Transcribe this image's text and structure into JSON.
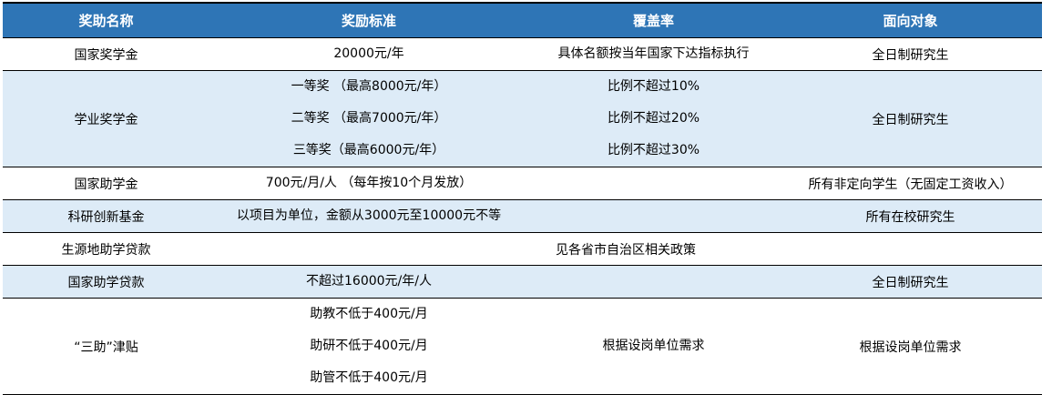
{
  "colors": {
    "header_bg": "#2E75B6",
    "alt_row_bg": "#DDEBF7"
  },
  "table": {
    "headers": [
      "奖助名称",
      "奖励标准",
      "覆盖率",
      "面向对象"
    ],
    "rows": [
      {
        "name": "国家奖学金",
        "standard": [
          "20000元/年"
        ],
        "coverage": [
          "具体名额按当年国家下达指标执行"
        ],
        "target": "全日制研究生",
        "alt": false
      },
      {
        "name": "学业奖学金",
        "standard": [
          "一等奖 （最高8000元/年）",
          "二等奖 （最高7000元/年）",
          "三等奖（最高6000元/年）"
        ],
        "coverage": [
          "比例不超过10%",
          "比例不超过20%",
          "比例不超过30%"
        ],
        "target": "全日制研究生",
        "alt": true
      },
      {
        "name": "国家助学金",
        "standard": [
          "700元/月/人 （每年按10个月发放）"
        ],
        "coverage": [
          ""
        ],
        "target": "所有非定向学生（无固定工资收入）",
        "alt": false
      },
      {
        "name": "科研创新基金",
        "standard": [
          "以项目为单位，金额从3000元至10000元不等"
        ],
        "coverage": [
          ""
        ],
        "target": "所有在校研究生",
        "alt": true
      },
      {
        "name": "生源地助学贷款",
        "merged": "见各省市自治区相关政策",
        "alt": false
      },
      {
        "name": "国家助学贷款",
        "standard": [
          "不超过16000元/年/人"
        ],
        "coverage": [
          ""
        ],
        "target": "全日制研究生",
        "alt": true
      },
      {
        "name": "“三助”津贴",
        "standard": [
          "助教不低于400元/月",
          "助研不低于400元/月",
          "助管不低于400元/月"
        ],
        "coverage": [
          "根据设岗单位需求"
        ],
        "target": "根据设岗单位需求",
        "alt": false
      }
    ]
  }
}
